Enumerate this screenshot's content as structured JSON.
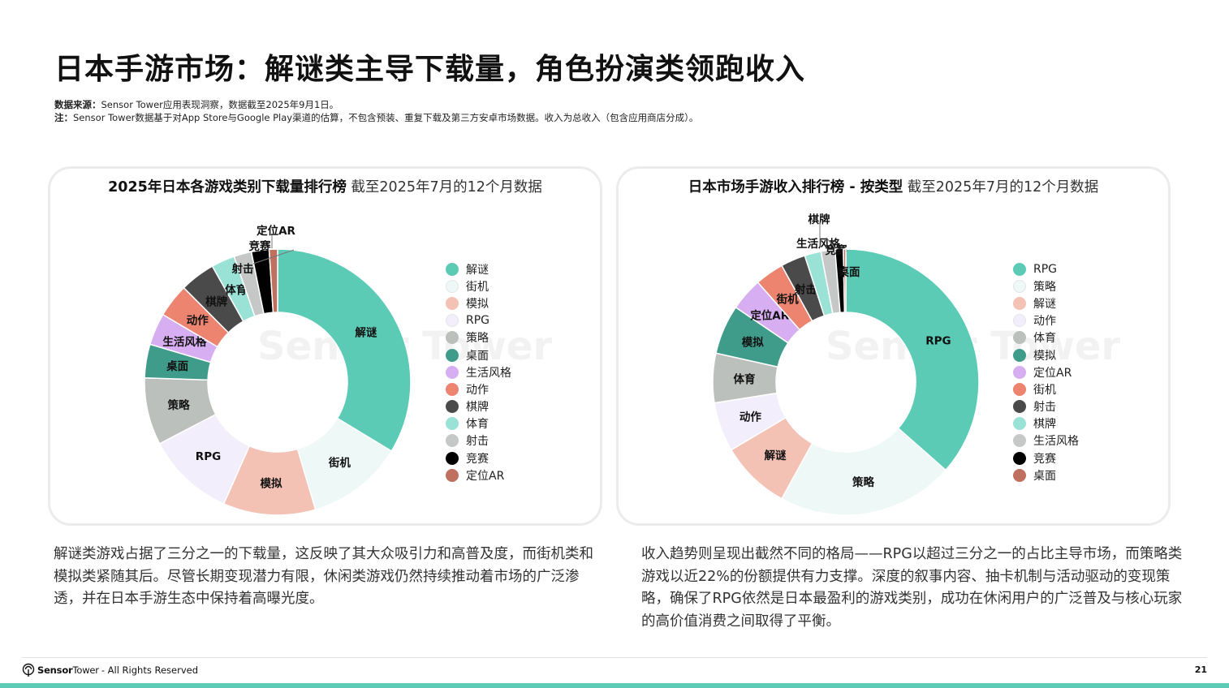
{
  "page": {
    "title": "日本手游市场：解谜类主导下载量，角色扮演类领跑收入",
    "source_label": "数据来源：",
    "source_text": "Sensor Tower应用表现洞察，数据截至2025年9月1日。",
    "note_label": "注：",
    "note_text": "Sensor Tower数据基于对App Store与Google Play渠道的估算，不包含预装、重复下载及第三方安卓市场数据。收入为总收入（包含应用商店分成）。",
    "left_text": "解谜类游戏占据了三分之一的下载量，这反映了其大众吸引力和高普及度，而街机类和模拟类紧随其后。尽管长期变现潜力有限，休闲类游戏仍然持续推动着市场的广泛渗透，并在日本手游生态中保持着高曝光度。",
    "right_text": "收入趋势则呈现出截然不同的格局——RPG以超过三分之一的占比主导市场，而策略类游戏以近22%的份额提供有力支撑。深度的叙事内容、抽卡机制与活动驱动的变现策略，确保了RPG依然是日本最盈利的游戏类别，成功在休闲用户的广泛普及与核心玩家的高价值消费之间取得了平衡。",
    "footer_brand_a": "Sensor",
    "footer_brand_b": "Tower",
    "footer_rights": "- All Rights Reserved",
    "page_number": "21",
    "accent_color": "#5ccbb6"
  },
  "chart_data": [
    {
      "type": "pie",
      "style": "donut",
      "title": "2025年日本各游戏类别下载量排行榜",
      "subtitle": "截至2025年7月的12个月数据",
      "watermark": "Sensor Tower",
      "legend_position": "right",
      "categories": [
        "解谜",
        "街机",
        "模拟",
        "RPG",
        "策略",
        "桌面",
        "生活风格",
        "动作",
        "棋牌",
        "体育",
        "射击",
        "竞赛",
        "定位AR"
      ],
      "values": [
        33.0,
        11.5,
        11.0,
        10.5,
        8.0,
        4.0,
        3.8,
        4.0,
        4.2,
        2.8,
        2.1,
        2.1,
        1.0
      ],
      "colors": [
        "#5ccbb6",
        "#eef8f6",
        "#f4c1b5",
        "#f3eefb",
        "#bcc0bd",
        "#3f9c8b",
        "#d6aef1",
        "#ec8470",
        "#4a4a4a",
        "#9ae2d6",
        "#c6c8c7",
        "#000000",
        "#c0705f"
      ]
    },
    {
      "type": "pie",
      "style": "donut",
      "title": "日本市场手游收入排行榜 - 按类型",
      "subtitle": "截至2025年7月的12个月数据",
      "watermark": "Sensor Tower",
      "legend_position": "right",
      "categories": [
        "RPG",
        "策略",
        "解谜",
        "动作",
        "体育",
        "模拟",
        "定位AR",
        "街机",
        "射击",
        "棋牌",
        "生活风格",
        "竞赛",
        "桌面"
      ],
      "values": [
        36.5,
        21.5,
        8.5,
        6.0,
        6.0,
        6.0,
        4.0,
        3.5,
        3.0,
        2.0,
        1.7,
        1.0,
        0.3
      ],
      "colors": [
        "#5ccbb6",
        "#eef8f6",
        "#f4c1b5",
        "#f3eefb",
        "#bcc0bd",
        "#3f9c8b",
        "#d6aef1",
        "#ec8470",
        "#4a4a4a",
        "#9ae2d6",
        "#c6c8c7",
        "#000000",
        "#c0705f"
      ]
    }
  ]
}
